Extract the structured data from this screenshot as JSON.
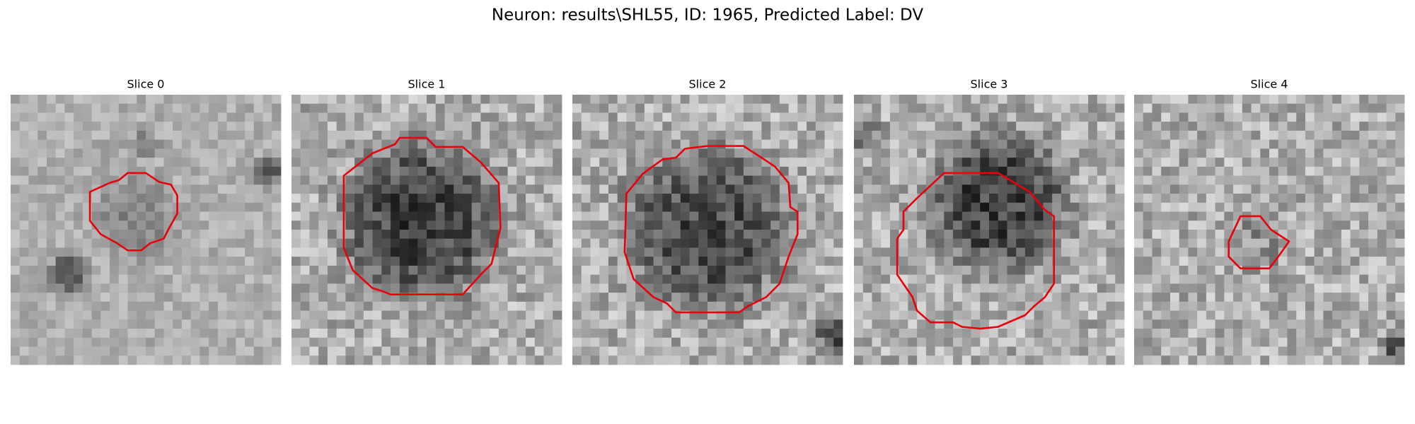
{
  "title": "Neuron: results\\SHL55, ID: 1965, Predicted Label: DV",
  "panels": [
    {
      "title": "Slice 0"
    },
    {
      "title": "Slice 1"
    },
    {
      "title": "Slice 2"
    },
    {
      "title": "Slice 3"
    },
    {
      "title": "Slice 4"
    }
  ]
}
